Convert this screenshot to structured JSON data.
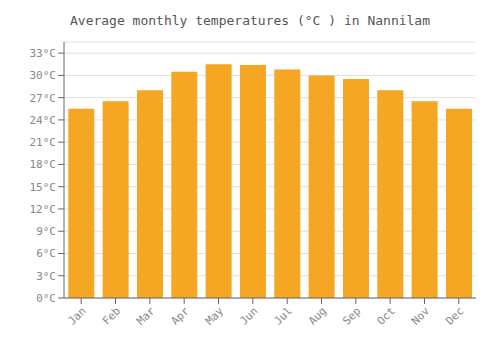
{
  "chart_data": {
    "type": "bar",
    "title": "Average monthly temperatures (°C ) in Nannilam",
    "categories": [
      "Jan",
      "Feb",
      "Mar",
      "Apr",
      "May",
      "Jun",
      "Jul",
      "Aug",
      "Sep",
      "Oct",
      "Nov",
      "Dec"
    ],
    "values": [
      25.5,
      26.5,
      28.0,
      30.5,
      31.5,
      31.4,
      30.8,
      30.0,
      29.5,
      28.0,
      26.5,
      25.5
    ],
    "color": "#F5A623",
    "ylim": [
      0,
      34.5
    ],
    "yticks": [
      {
        "value": 0,
        "label": "0°C"
      },
      {
        "value": 3,
        "label": "3°C"
      },
      {
        "value": 6,
        "label": "6°C"
      },
      {
        "value": 9,
        "label": "9°C"
      },
      {
        "value": 12,
        "label": "12°C"
      },
      {
        "value": 15,
        "label": "15°C"
      },
      {
        "value": 18,
        "label": "18°C"
      },
      {
        "value": 21,
        "label": "21°C"
      },
      {
        "value": 24,
        "label": "24°C"
      },
      {
        "value": 27,
        "label": "27°C"
      },
      {
        "value": 30,
        "label": "30°C"
      },
      {
        "value": 33,
        "label": "33°C"
      }
    ],
    "grid": true
  }
}
